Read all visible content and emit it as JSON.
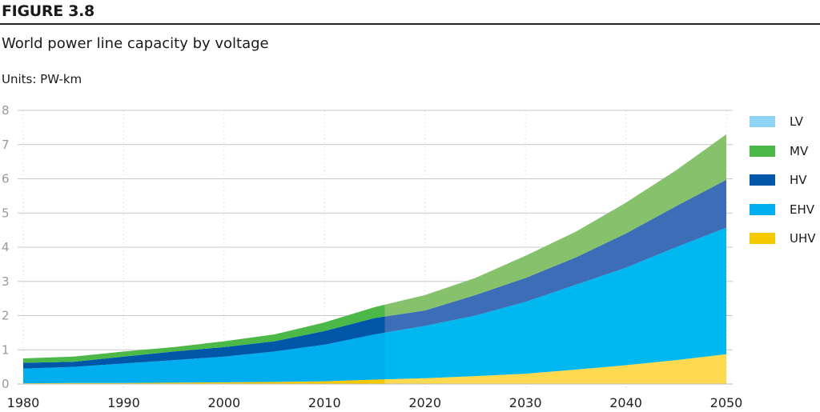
{
  "figure_label": "FIGURE 3.8",
  "chart_data": {
    "type": "area",
    "stacked": true,
    "title": "World power line capacity by voltage",
    "units": "Units: PW-km",
    "xlabel": "",
    "ylabel": "",
    "x": [
      1980,
      1985,
      1990,
      1995,
      2000,
      2005,
      2010,
      2015,
      2020,
      2025,
      2030,
      2035,
      2040,
      2045,
      2050
    ],
    "xlim": [
      1980,
      2050
    ],
    "ylim": [
      0,
      8
    ],
    "xticks": [
      "1980",
      "1990",
      "2000",
      "2010",
      "2020",
      "2030",
      "2040",
      "2050"
    ],
    "yticks": [
      "0",
      "1",
      "2",
      "3",
      "4",
      "5",
      "6",
      "7",
      "8"
    ],
    "grid": "horizontal",
    "legend_position": "right",
    "forecast_start": 2016,
    "series": [
      {
        "name": "UHV",
        "color": "#f5c800",
        "forecast_color": "#fcd94e",
        "values": [
          0.02,
          0.03,
          0.03,
          0.04,
          0.05,
          0.06,
          0.08,
          0.13,
          0.17,
          0.23,
          0.3,
          0.42,
          0.55,
          0.7,
          0.87
        ]
      },
      {
        "name": "EHV",
        "color": "#00aeef",
        "forecast_color": "#00b8f0",
        "values": [
          0.43,
          0.47,
          0.57,
          0.66,
          0.75,
          0.89,
          1.07,
          1.32,
          1.53,
          1.77,
          2.1,
          2.48,
          2.85,
          3.3,
          3.7
        ]
      },
      {
        "name": "HV",
        "color": "#0057a8",
        "forecast_color": "#3d6db7",
        "values": [
          0.17,
          0.15,
          0.2,
          0.25,
          0.28,
          0.3,
          0.4,
          0.48,
          0.45,
          0.6,
          0.7,
          0.8,
          1.0,
          1.2,
          1.4
        ]
      },
      {
        "name": "MV",
        "color": "#4cb848",
        "forecast_color": "#86c16b",
        "values": [
          0.13,
          0.15,
          0.15,
          0.13,
          0.17,
          0.2,
          0.25,
          0.32,
          0.45,
          0.5,
          0.65,
          0.75,
          0.9,
          1.05,
          1.33
        ]
      },
      {
        "name": "LV",
        "color": "#8fd3f5",
        "forecast_color": "#a6dcf7",
        "values": [
          0,
          0,
          0,
          0,
          0,
          0,
          0,
          0,
          0,
          0,
          0,
          0,
          0,
          0,
          0
        ]
      }
    ],
    "legend_order": [
      "LV",
      "MV",
      "HV",
      "EHV",
      "UHV"
    ]
  }
}
